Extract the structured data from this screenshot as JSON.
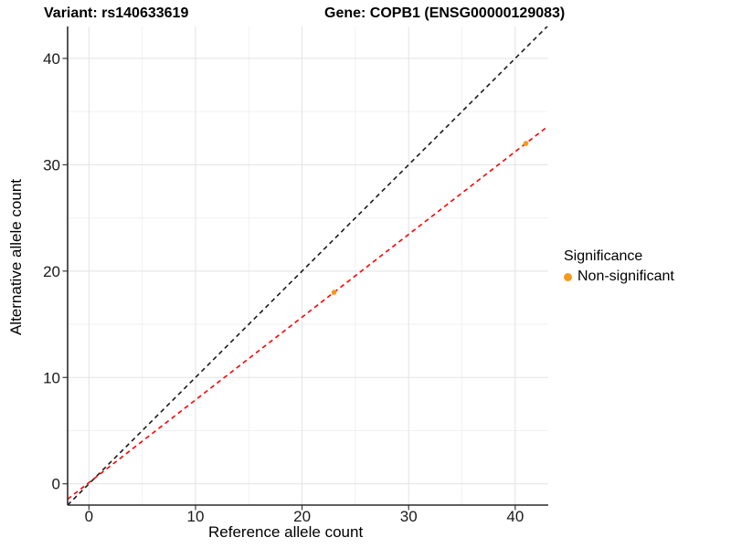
{
  "title": {
    "variant": "Variant: rs140633619",
    "gene": "Gene: COPB1 (ENSG00000129083)"
  },
  "axis": {
    "x_label": "Reference allele count",
    "y_label": "Alternative allele count"
  },
  "legend": {
    "title": "Significance",
    "items": [
      {
        "label": "Non-significant",
        "color": "#F8991D"
      }
    ]
  },
  "chart_data": {
    "type": "scatter",
    "title": "Variant: rs140633619 — Gene: COPB1 (ENSG00000129083)",
    "xlabel": "Reference allele count",
    "ylabel": "Alternative allele count",
    "xlim": [
      -2,
      43.1
    ],
    "ylim": [
      -2,
      43
    ],
    "x_ticks": [
      0,
      10,
      20,
      30,
      40
    ],
    "y_ticks": [
      0,
      10,
      20,
      30,
      40
    ],
    "x_minor_ticks": [
      5,
      15,
      25,
      35
    ],
    "y_minor_ticks": [
      5,
      15,
      25,
      35
    ],
    "grid": true,
    "legend_position": "right",
    "series": [
      {
        "name": "Non-significant",
        "color": "#F8991D",
        "points": [
          {
            "x": 23,
            "y": 18
          },
          {
            "x": 41,
            "y": 32
          }
        ]
      }
    ],
    "reference_lines": [
      {
        "name": "identity-line",
        "slope": 1,
        "intercept": 0,
        "color": "#1A1A1A",
        "style": "dashed"
      },
      {
        "name": "fit-line",
        "slope": 0.778,
        "intercept": 0.11,
        "color": "#FF0000",
        "style": "dashed"
      }
    ]
  },
  "style": {
    "background": "#FFFFFF",
    "grid_major": "#E3E3E3",
    "grid_minor": "#F1F1F1",
    "axis_line": "#2B2B2B",
    "tick_text": "#1A1A1A"
  }
}
